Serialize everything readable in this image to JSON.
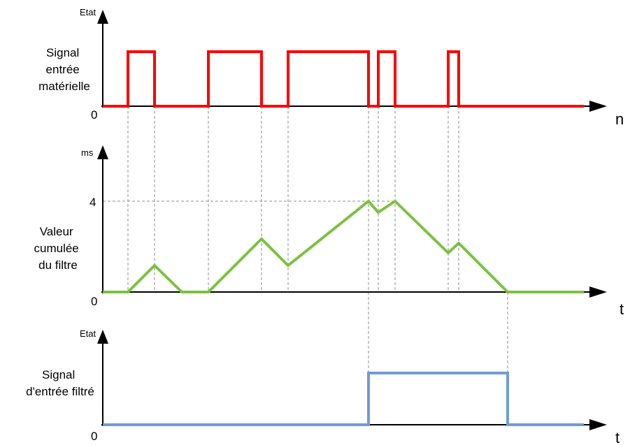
{
  "colors": {
    "input_signal": "#ff0000",
    "filter_value": "#7cc142",
    "filtered_signal": "#6f9bd8",
    "axes": "#000000",
    "guides": "#8c8c8c"
  },
  "top_chart": {
    "y_axis_label": "Etat",
    "zero_label": "0",
    "x_axis_label": "n",
    "signal_label": [
      "Signal",
      "entrée",
      "matérielle"
    ]
  },
  "middle_chart": {
    "y_axis_label": "ms",
    "tick_label": "4",
    "zero_label": "0",
    "x_axis_label": "t",
    "signal_label": [
      "Valeur",
      "cumulée",
      "du filtre"
    ]
  },
  "bottom_chart": {
    "y_axis_label": "Etat",
    "zero_label": "0",
    "x_axis_label": "t",
    "signal_label": [
      "Signal",
      "d'entrée filtré"
    ]
  }
}
